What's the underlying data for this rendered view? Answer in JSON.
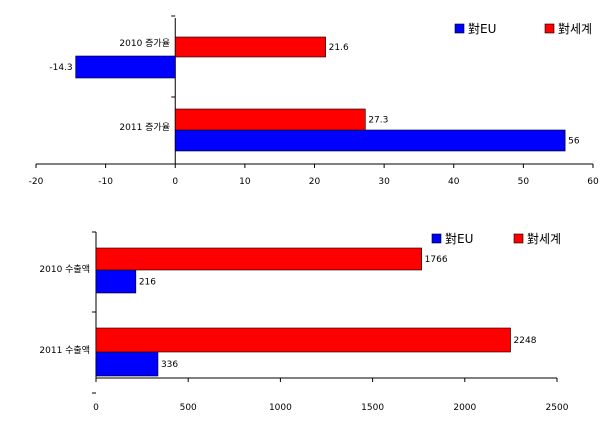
{
  "chart_data": [
    {
      "type": "bar",
      "orientation": "horizontal",
      "categories": [
        "2010 증가율",
        "2011 증가율"
      ],
      "series": [
        {
          "name": "對EU",
          "color": "#0000ff",
          "values": [
            -14.3,
            56
          ]
        },
        {
          "name": "對세계",
          "color": "#ff0000",
          "values": [
            21.6,
            27.3
          ]
        }
      ],
      "xlim": [
        -20,
        60
      ],
      "xticks": [
        -20,
        -10,
        0,
        10,
        20,
        30,
        40,
        50,
        60
      ],
      "data_labels": {
        "series0": [
          "-14.3",
          "56"
        ],
        "series1": [
          "21.6",
          "27.3"
        ]
      },
      "legend_position": "top-right"
    },
    {
      "type": "bar",
      "orientation": "horizontal",
      "categories": [
        "2010 수출액",
        "2011 수출액"
      ],
      "series": [
        {
          "name": "對EU",
          "color": "#0000ff",
          "values": [
            216,
            336
          ]
        },
        {
          "name": "對세계",
          "color": "#ff0000",
          "values": [
            1766,
            2248
          ]
        }
      ],
      "xlim": [
        0,
        2500
      ],
      "xticks": [
        0,
        500,
        1000,
        1500,
        2000,
        2500
      ],
      "data_labels": {
        "series0": [
          "216",
          "336"
        ],
        "series1": [
          "1766",
          "2248"
        ]
      },
      "legend_position": "top-right"
    }
  ]
}
